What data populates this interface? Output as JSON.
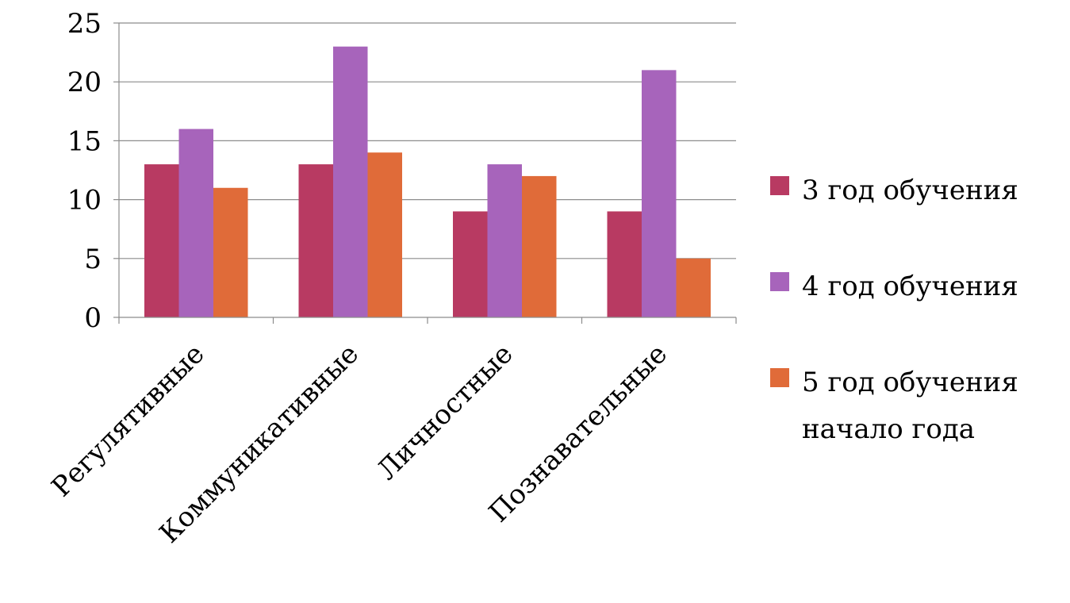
{
  "chart_data": {
    "type": "bar",
    "categories": [
      "Регулятивные",
      "Коммуникативные",
      "Личностные",
      "Познавательные"
    ],
    "series": [
      {
        "name": "3 год обучения",
        "values": [
          13,
          13,
          9,
          9
        ],
        "color": "#B83A62"
      },
      {
        "name": "4 год обучения",
        "values": [
          16,
          23,
          13,
          21
        ],
        "color": "#A764BB"
      },
      {
        "name": "5 год обучения начало года",
        "name_lines": [
          "5 год обучения",
          "начало года"
        ],
        "values": [
          11,
          14,
          12,
          5
        ],
        "color": "#E06B39"
      }
    ],
    "yticks": [
      "0",
      "5",
      "10",
      "15",
      "20",
      "25"
    ],
    "ylim": [
      0,
      25
    ],
    "grid": true,
    "legend_position": "right",
    "title": "",
    "xlabel": "",
    "ylabel": ""
  }
}
